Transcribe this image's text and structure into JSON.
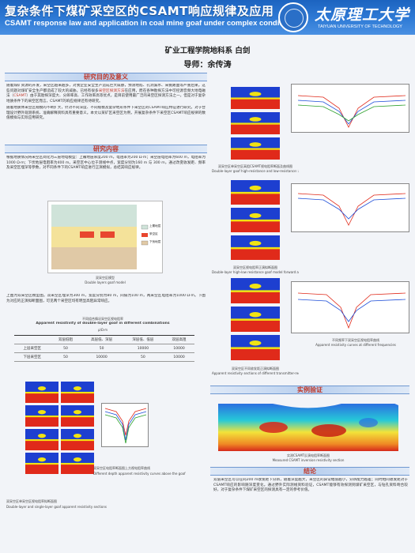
{
  "header": {
    "title_cn": "复杂条件下煤矿采空区的CSAMT响应规律及应用",
    "title_en": "CSAMT response law and application in coal mine goaf under complex conditions",
    "university_cn": "太原理工大学",
    "university_en": "TAIYUAN UNIVERSITY OF TECHNOLOGY"
  },
  "authors": {
    "line1": "矿业工程学院地科系 白剑",
    "line2": "导师：余传涛"
  },
  "sections": {
    "background": {
      "title": "研究目的及意义",
      "text_a": "随着煤矿资源的开发，采空区越来越多，对我企业安全生产造成巨大威胁，预测地陷、孔洞漏水、采掘路面等严重后果。这些问题对煤矿安全生产都造成了较大的威胁。已经有很多",
      "hl_a": "采空区探测方法",
      "text_b": "在应用，而在各种勘探方法中可控源音频大地电磁法（",
      "hl_b": "CSAMT",
      "text_c": "）由于其勘探深度大、分辨率高、工作效率高等优点，是目前使用最广泛的采空区探测方法之一。但是对于复杂地质条件下的采空区而言，CSAMT的响应规律还有待研究。",
      "text_d": "随着地质体采空区规模的不断扩大，针对不同深度、不同规模及复杂地形条件下采空区的CSAMT响应特征进行研究，对于合理设计野外观测系统、准确解释资料具有重要意义。本文以某矿区采空区为例，开展复杂条件下采空区CSAMT响应规律的数值模拟与实际应用研究。"
    },
    "content": {
      "title": "研究内容",
      "text_a": "根据地质情况将采空区简化为三层地电模型：上覆地层厚度200 m，电阻率为200 Ω·m；采空层电阻率为600 m，电阻率为1000 Ω·m；下伏地层电阻率为400 m。采空区中心位于测线中点，宽度分别为160 m 与 300 m，通过改变收发距、频率及采空区埋深等参数，对不同条件下的CSAMT响应进行正演模拟，总结其响应规律。",
      "text_b": "上图为双采空区模型图。双采空区埋深为300 m，宽度分别为80 m，间隔为100 m，两采空区电阻率为1000 Ω·m。下图为对应的正演拟断面图，可见两个采空区均有明显高阻异常响应。"
    },
    "model_figure": {
      "caption_cn": "双采空区模型",
      "caption_en": "Double layers goaf model",
      "legend_goaf": "上覆地层",
      "legend_low": "采空区",
      "legend_bottom": "下伏地层"
    },
    "table": {
      "title_cn": "不同组合情况采空区视电阻率",
      "title_en": "Apparent resistivity of double-layer goaf in different combinations",
      "unit": "ρ/Ω·m",
      "headers": [
        "",
        "双层低阻",
        "高层低、深层",
        "深层低、低层",
        "双层高阻"
      ],
      "rows": [
        [
          "上层采空区",
          "50",
          "50",
          "10000",
          "10000"
        ],
        [
          "下层采空区",
          "50",
          "10000",
          "50",
          "10000"
        ]
      ]
    },
    "figures": {
      "caption_1_cn": "双采空区单采空区高阻CSAMT视电阻率断面及曲线图",
      "caption_1_en": "Double-layer goaf high-resistance and low-resistance: apparent resistivity sections",
      "caption_2_cn": "双采空区视电阻率正演拟断面图",
      "caption_2_en": "Double-layer high-low resistance goaf model forward apparent resistivity sections",
      "caption_3_cn": "双采空区不同收发距正演拟断面图",
      "caption_3_en": "Apparent resistivity sections of different transmitter-receiver distances",
      "caption_4_cn": "不同频率下双采空区视电阻率曲线",
      "caption_4_en": "Apparent resistivity curves at different frequencies",
      "bottom_left_cn": "双采空区单采空区视电阻率拟断面图",
      "bottom_left_en": "Double-layer and single-layer goaf apparent resistivity sections",
      "bottom_mid_cn": "双采空区电阻率断面图上方视电阻率曲线",
      "bottom_mid_en": "Different depth apparent resistivity curves above the goaf"
    },
    "application": {
      "title": "实例验证",
      "caption_cn": "实测CSAMT反演电阻率断面图",
      "caption_en": "Measured CSAMT inversion resistivity section"
    },
    "conclusion": {
      "title": "结论",
      "text": "双层采空区可以在同200 m收发距下分辨，随着深度越大，采空区的异常幅值越小，分辨能力越差；同时相同收发距对于CSAMT响应的影响随深度变化。通过野外实际测线资料验证，CSAMT能够有效探测到煤矿采空区，与钻孔资料吻合较好，对于复杂条件下煤矿采空区的探测具有一定的参考价值。"
    }
  },
  "colors": {
    "header_blue": "#1c63c0",
    "section_red": "#c0392b",
    "map_deep_blue": "#1d3fd0",
    "map_red": "#e02a1a",
    "map_yellow": "#f1e313"
  }
}
